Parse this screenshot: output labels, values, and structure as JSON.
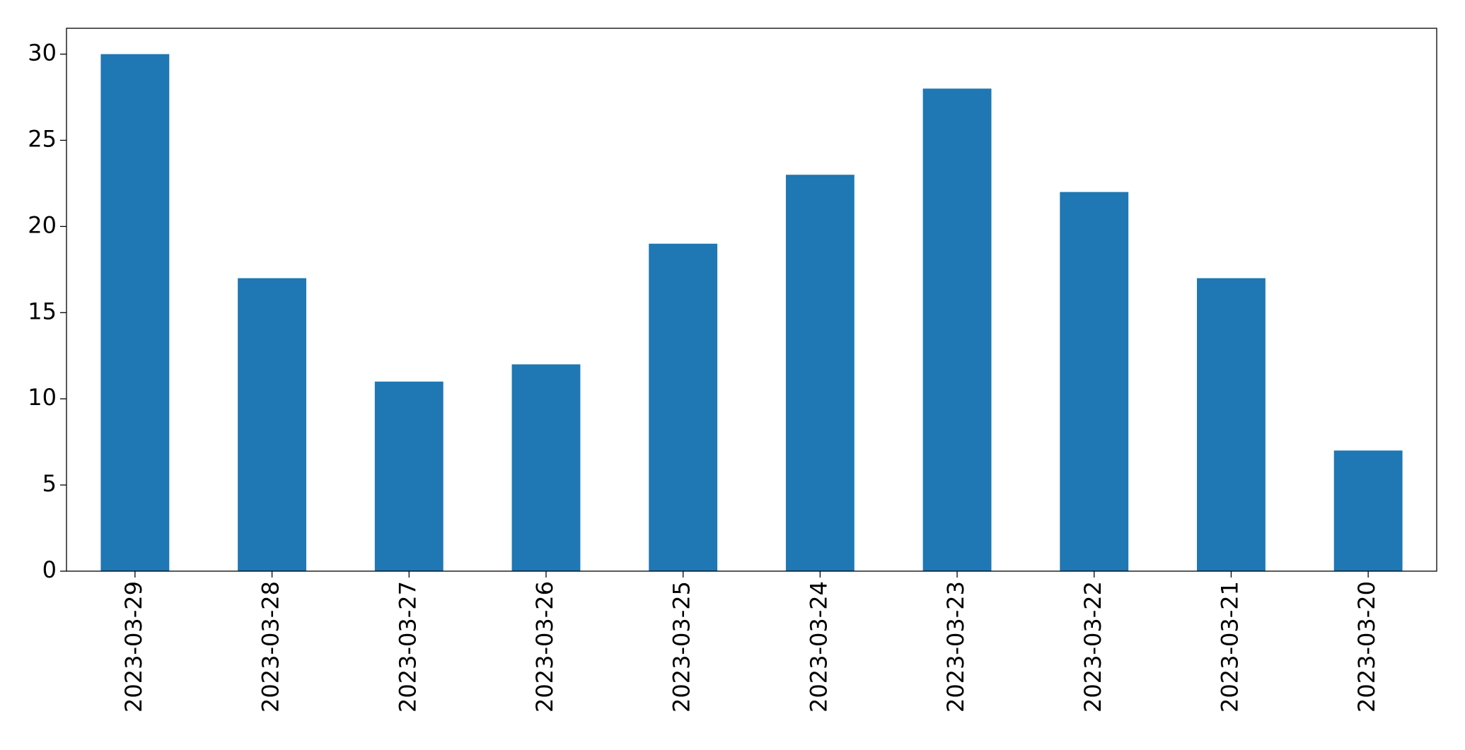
{
  "chart_data": {
    "type": "bar",
    "categories": [
      "2023-03-29",
      "2023-03-28",
      "2023-03-27",
      "2023-03-26",
      "2023-03-25",
      "2023-03-24",
      "2023-03-23",
      "2023-03-22",
      "2023-03-21",
      "2023-03-20"
    ],
    "values": [
      30,
      17,
      11,
      12,
      19,
      23,
      28,
      22,
      17,
      7
    ],
    "color": "#1f77b4",
    "ylim": [
      0,
      31.5
    ],
    "yticks": [
      0,
      5,
      10,
      15,
      20,
      25,
      30
    ],
    "grid": false
  }
}
